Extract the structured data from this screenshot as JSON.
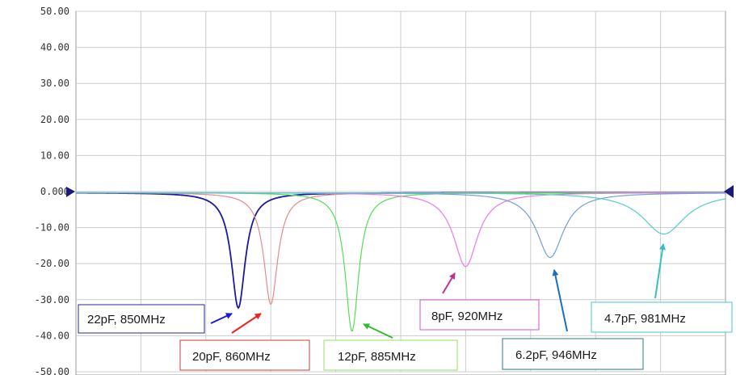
{
  "chart_data": {
    "type": "line",
    "title": "",
    "xlabel": "",
    "ylabel": "",
    "ylim": [
      -50,
      50
    ],
    "xlim": [
      800,
      1000
    ],
    "y_ticks": [
      "50.00",
      "40.00",
      "30.00",
      "20.00",
      "10.00",
      "0.000",
      "-10.00",
      "-20.00",
      "-30.00",
      "-40.00",
      "-50.00"
    ],
    "grid": true,
    "series": [
      {
        "color": "#1a1aa0",
        "resonance_mhz": 850,
        "min_db": -32,
        "width_mhz": 2.6
      },
      {
        "color": "#e88a8a",
        "resonance_mhz": 860,
        "min_db": -31,
        "width_mhz": 2.6
      },
      {
        "color": "#55dd55",
        "resonance_mhz": 885,
        "min_db": -38.5,
        "width_mhz": 2.5
      },
      {
        "color": "#ee77ee",
        "resonance_mhz": 920,
        "min_db": -20.5,
        "width_mhz": 4.5
      },
      {
        "color": "#6fa0dd",
        "resonance_mhz": 946,
        "min_db": -18,
        "width_mhz": 5.0
      },
      {
        "color": "#55cccc",
        "resonance_mhz": 981,
        "min_db": -11.5,
        "width_mhz": 8.0
      }
    ],
    "annotations": [
      {
        "text": "22pF, 850MHz",
        "border": "#2a2a8a",
        "arrow": "#1a1adb"
      },
      {
        "text": "20pF, 860MHz",
        "border": "#c04040",
        "arrow": "#ee2222"
      },
      {
        "text": "12pF, 885MHz",
        "border": "#99dd66",
        "arrow": "#33bb33"
      },
      {
        "text": "8pF, 920MHz",
        "border": "#cc55cc",
        "arrow": "#bb3399"
      },
      {
        "text": "6.2pF, 946MHz",
        "border": "#2a7a8a",
        "arrow": "#1a6fbb"
      },
      {
        "text": "4.7pF, 981MHz",
        "border": "#44c8c8",
        "arrow": "#33c0c0"
      }
    ]
  }
}
